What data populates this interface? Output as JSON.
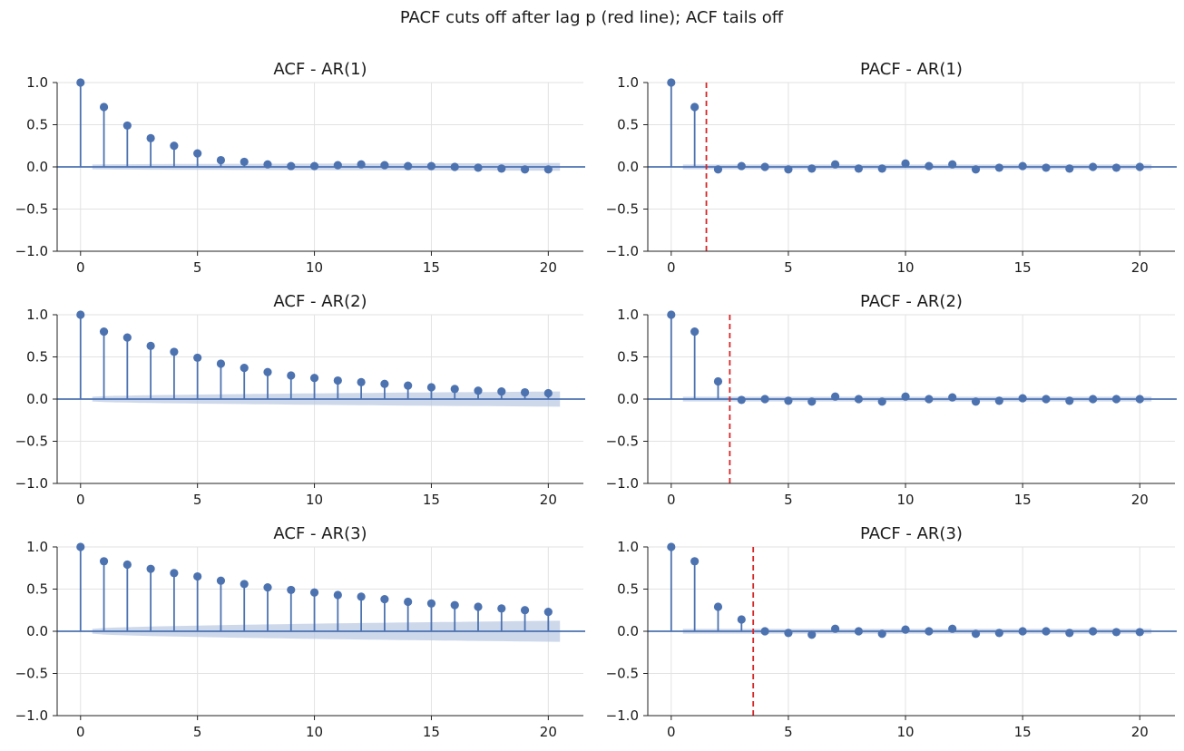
{
  "suptitle": "PACF cuts off after lag p (red line); ACF tails off",
  "colors": {
    "stem": "#4c72b0",
    "band": "#b8c7e3",
    "cutoff": "#d62728",
    "grid": "#e2e2e2",
    "axis": "#222222"
  },
  "chart_data": [
    {
      "type": "stem",
      "title": "ACF  - AR(1)",
      "x": [
        0,
        1,
        2,
        3,
        4,
        5,
        6,
        7,
        8,
        9,
        10,
        11,
        12,
        13,
        14,
        15,
        16,
        17,
        18,
        19,
        20
      ],
      "values": [
        1.0,
        0.71,
        0.49,
        0.34,
        0.25,
        0.16,
        0.08,
        0.06,
        0.03,
        0.01,
        0.01,
        0.02,
        0.03,
        0.02,
        0.01,
        0.01,
        0.0,
        -0.01,
        -0.02,
        -0.03,
        -0.03
      ],
      "conf_band": {
        "start": 0.5,
        "end": 20.5,
        "half_width_start": 0.028,
        "half_width_end": 0.045
      },
      "cutoff_lag": null,
      "xlim": [
        -1,
        21.5
      ],
      "ylim": [
        -1,
        1
      ],
      "xticks": [
        0,
        5,
        10,
        15,
        20
      ],
      "yticks": [
        1.0,
        0.5,
        0.0,
        -0.5,
        -1.0
      ],
      "grid": true
    },
    {
      "type": "stem",
      "title": "PACF - AR(1)",
      "x": [
        0,
        1,
        2,
        3,
        4,
        5,
        6,
        7,
        8,
        9,
        10,
        11,
        12,
        13,
        14,
        15,
        16,
        17,
        18,
        19,
        20
      ],
      "values": [
        1.0,
        0.71,
        -0.03,
        0.01,
        0.0,
        -0.03,
        -0.02,
        0.03,
        -0.02,
        -0.02,
        0.04,
        0.01,
        0.03,
        -0.03,
        -0.01,
        0.01,
        -0.01,
        -0.02,
        0.0,
        -0.01,
        0.0
      ],
      "conf_band": {
        "start": 0.5,
        "end": 20.5,
        "half_width_start": 0.028,
        "half_width_end": 0.028
      },
      "cutoff_lag": 1.5,
      "xlim": [
        -1,
        21.5
      ],
      "ylim": [
        -1,
        1
      ],
      "xticks": [
        0,
        5,
        10,
        15,
        20
      ],
      "yticks": [
        1.0,
        0.5,
        0.0,
        -0.5,
        -1.0
      ],
      "grid": true
    },
    {
      "type": "stem",
      "title": "ACF  - AR(2)",
      "x": [
        0,
        1,
        2,
        3,
        4,
        5,
        6,
        7,
        8,
        9,
        10,
        11,
        12,
        13,
        14,
        15,
        16,
        17,
        18,
        19,
        20
      ],
      "values": [
        1.0,
        0.8,
        0.73,
        0.63,
        0.56,
        0.49,
        0.42,
        0.37,
        0.32,
        0.28,
        0.25,
        0.22,
        0.2,
        0.18,
        0.16,
        0.14,
        0.12,
        0.1,
        0.09,
        0.08,
        0.07
      ],
      "conf_band": {
        "start": 0.5,
        "end": 20.5,
        "half_width_start": 0.028,
        "half_width_end": 0.09
      },
      "cutoff_lag": null,
      "xlim": [
        -1,
        21.5
      ],
      "ylim": [
        -1,
        1
      ],
      "xticks": [
        0,
        5,
        10,
        15,
        20
      ],
      "yticks": [
        1.0,
        0.5,
        0.0,
        -0.5,
        -1.0
      ],
      "grid": true
    },
    {
      "type": "stem",
      "title": "PACF - AR(2)",
      "x": [
        0,
        1,
        2,
        3,
        4,
        5,
        6,
        7,
        8,
        9,
        10,
        11,
        12,
        13,
        14,
        15,
        16,
        17,
        18,
        19,
        20
      ],
      "values": [
        1.0,
        0.8,
        0.21,
        -0.01,
        0.0,
        -0.02,
        -0.03,
        0.03,
        0.0,
        -0.03,
        0.03,
        0.0,
        0.02,
        -0.03,
        -0.02,
        0.01,
        0.0,
        -0.02,
        0.0,
        0.0,
        0.0
      ],
      "conf_band": {
        "start": 0.5,
        "end": 20.5,
        "half_width_start": 0.028,
        "half_width_end": 0.028
      },
      "cutoff_lag": 2.5,
      "xlim": [
        -1,
        21.5
      ],
      "ylim": [
        -1,
        1
      ],
      "xticks": [
        0,
        5,
        10,
        15,
        20
      ],
      "yticks": [
        1.0,
        0.5,
        0.0,
        -0.5,
        -1.0
      ],
      "grid": true
    },
    {
      "type": "stem",
      "title": "ACF  - AR(3)",
      "x": [
        0,
        1,
        2,
        3,
        4,
        5,
        6,
        7,
        8,
        9,
        10,
        11,
        12,
        13,
        14,
        15,
        16,
        17,
        18,
        19,
        20
      ],
      "values": [
        1.0,
        0.83,
        0.79,
        0.74,
        0.69,
        0.65,
        0.6,
        0.56,
        0.52,
        0.49,
        0.46,
        0.43,
        0.41,
        0.38,
        0.35,
        0.33,
        0.31,
        0.29,
        0.27,
        0.25,
        0.23
      ],
      "conf_band": {
        "start": 0.5,
        "end": 20.5,
        "half_width_start": 0.028,
        "half_width_end": 0.125
      },
      "cutoff_lag": null,
      "xlim": [
        -1,
        21.5
      ],
      "ylim": [
        -1,
        1
      ],
      "xticks": [
        0,
        5,
        10,
        15,
        20
      ],
      "yticks": [
        1.0,
        0.5,
        0.0,
        -0.5,
        -1.0
      ],
      "grid": true
    },
    {
      "type": "stem",
      "title": "PACF - AR(3)",
      "x": [
        0,
        1,
        2,
        3,
        4,
        5,
        6,
        7,
        8,
        9,
        10,
        11,
        12,
        13,
        14,
        15,
        16,
        17,
        18,
        19,
        20
      ],
      "values": [
        1.0,
        0.83,
        0.29,
        0.14,
        0.0,
        -0.02,
        -0.04,
        0.03,
        0.0,
        -0.03,
        0.02,
        0.0,
        0.03,
        -0.03,
        -0.02,
        0.0,
        0.0,
        -0.02,
        0.0,
        -0.01,
        -0.01
      ],
      "conf_band": {
        "start": 0.5,
        "end": 20.5,
        "half_width_start": 0.028,
        "half_width_end": 0.028
      },
      "cutoff_lag": 3.5,
      "xlim": [
        -1,
        21.5
      ],
      "ylim": [
        -1,
        1
      ],
      "xticks": [
        0,
        5,
        10,
        15,
        20
      ],
      "yticks": [
        1.0,
        0.5,
        0.0,
        -0.5,
        -1.0
      ],
      "grid": true
    }
  ]
}
